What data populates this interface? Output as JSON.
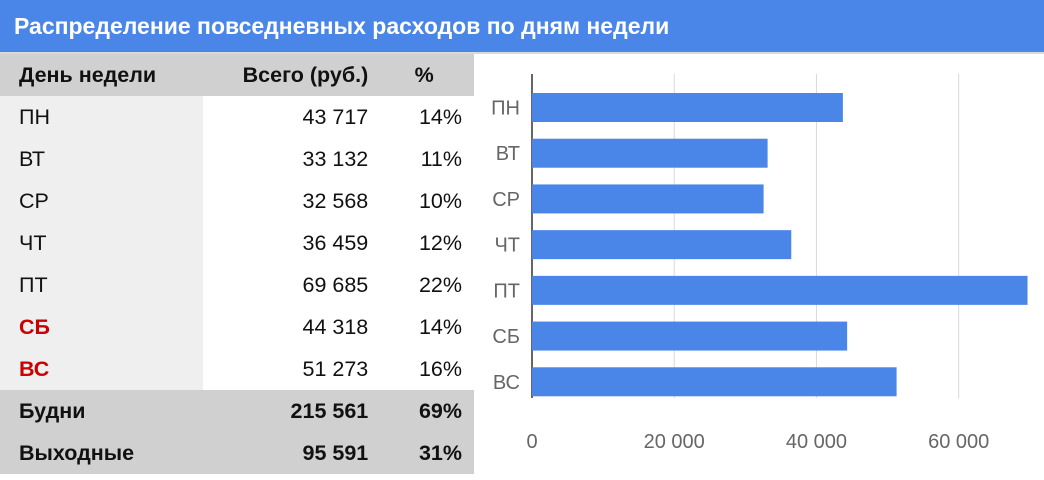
{
  "title": "Распределение повседневных расходов по дням недели",
  "table": {
    "headers": {
      "day": "День недели",
      "total": "Всего (руб.)",
      "percent": "%"
    },
    "rows": [
      {
        "day": "ПН",
        "total": "43 717",
        "percent": "14%",
        "weekend": false
      },
      {
        "day": "ВТ",
        "total": "33 132",
        "percent": "11%",
        "weekend": false
      },
      {
        "day": "СР",
        "total": "32 568",
        "percent": "10%",
        "weekend": false
      },
      {
        "day": "ЧТ",
        "total": "36 459",
        "percent": "12%",
        "weekend": false
      },
      {
        "day": "ПТ",
        "total": "69 685",
        "percent": "22%",
        "weekend": false
      },
      {
        "day": "СБ",
        "total": "44 318",
        "percent": "14%",
        "weekend": true
      },
      {
        "day": "ВС",
        "total": "51 273",
        "percent": "16%",
        "weekend": true
      }
    ],
    "summary": [
      {
        "label": "Будни",
        "total": "215 561",
        "percent": "69%"
      },
      {
        "label": "Выходные",
        "total": "95 591",
        "percent": "31%"
      }
    ]
  },
  "colors": {
    "title_bg": "#4a86e8",
    "bar": "#4a86e8",
    "weekend_text": "#cc0000"
  },
  "chart_data": {
    "type": "bar",
    "orientation": "horizontal",
    "categories": [
      "ПН",
      "ВТ",
      "СР",
      "ЧТ",
      "ПТ",
      "СБ",
      "ВС"
    ],
    "values": [
      43717,
      33132,
      32568,
      36459,
      69685,
      44318,
      51273
    ],
    "xlim": [
      0,
      72000
    ],
    "xticks": [
      0,
      20000,
      40000,
      60000
    ],
    "xtick_labels": [
      "0",
      "20 000",
      "40 000",
      "60 000"
    ],
    "grid": true,
    "legend": "none"
  }
}
